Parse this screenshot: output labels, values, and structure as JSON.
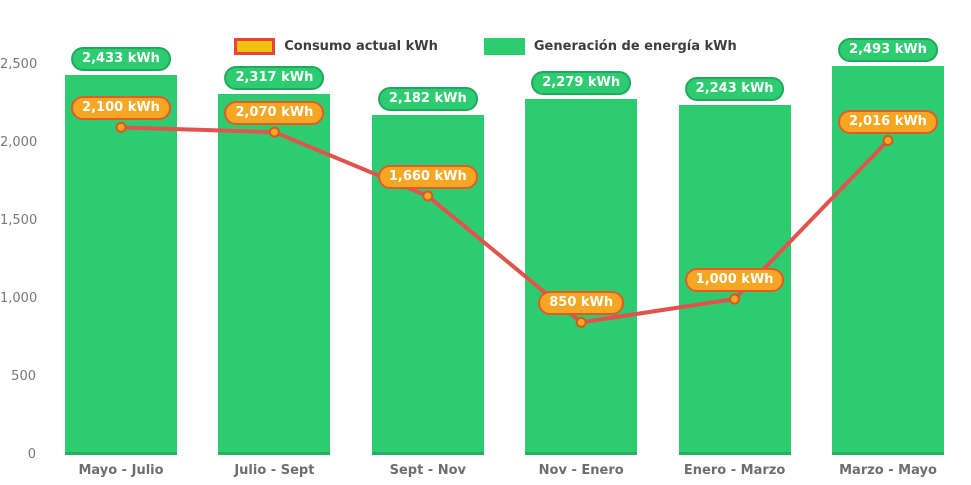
{
  "chart_data": {
    "type": "bar",
    "subtype": "bar-line-combo",
    "categories": [
      "Mayo - Julio",
      "Julio - Sept",
      "Sept - Nov",
      "Nov - Enero",
      "Enero - Marzo",
      "Marzo - Mayo"
    ],
    "series": [
      {
        "name": "Consumo actual kWh",
        "type": "line",
        "line_color": "#e3534d",
        "marker_fill": "#f5a623",
        "marker_ring": "#d8571f",
        "badge_fill": "#f5a623",
        "badge_border": "#e05b28",
        "values": [
          2100,
          2070,
          1660,
          850,
          1000,
          2016
        ],
        "labels": [
          "2,100 kWh",
          "2,070 kWh",
          "1,660 kWh",
          "850 kWh",
          "1,000 kWh",
          "2,016 kWh"
        ]
      },
      {
        "name": "Generación de energía kWh",
        "type": "bar",
        "color": "#2ecc71",
        "base_color": "#27ae60",
        "badge_fill": "#2ecc71",
        "badge_border": "#1fa95c",
        "values": [
          2433,
          2317,
          2182,
          2279,
          2243,
          2493
        ],
        "labels": [
          "2,433 kWh",
          "2,317 kWh",
          "2,182 kWh",
          "2,279 kWh",
          "2,243 kWh",
          "2,493 kWh"
        ]
      }
    ],
    "ylim": [
      0,
      2500
    ],
    "yticks": [
      {
        "value": 0,
        "label": "0"
      },
      {
        "value": 500,
        "label": "500"
      },
      {
        "value": 1000,
        "label": "1,000"
      },
      {
        "value": 1500,
        "label": "1,500"
      },
      {
        "value": 2000,
        "label": "2,000"
      },
      {
        "value": 2500,
        "label": "2,500"
      }
    ],
    "grid": false,
    "legend_position": "top-center",
    "axis_text_color": "#737373"
  }
}
